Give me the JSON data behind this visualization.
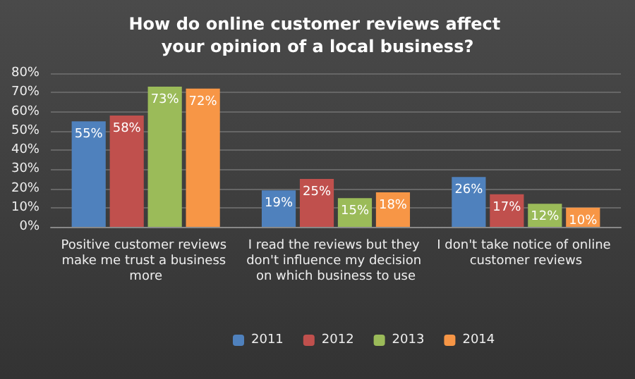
{
  "chart_data": {
    "type": "bar",
    "title": "How do online customer reviews affect your opinion of a local business?",
    "categories": [
      "Positive customer reviews make me trust a business more",
      "I read the reviews but they don't influence my decision on which business to use",
      "I don't take notice of online customer reviews"
    ],
    "series": [
      {
        "name": "2011",
        "color": "#4f81bd",
        "values": [
          55,
          19,
          26
        ],
        "value_labels": [
          "55%",
          "19%",
          "26%"
        ]
      },
      {
        "name": "2012",
        "color": "#c0504d",
        "values": [
          58,
          25,
          17
        ],
        "value_labels": [
          "58%",
          "25%",
          "17%"
        ]
      },
      {
        "name": "2013",
        "color": "#9bbb59",
        "values": [
          73,
          15,
          12
        ],
        "value_labels": [
          "73%",
          "15%",
          "12%"
        ]
      },
      {
        "name": "2014",
        "color": "#f79646",
        "values": [
          72,
          18,
          10
        ],
        "value_labels": [
          "72%",
          "18%",
          "10%"
        ]
      }
    ],
    "ylim": [
      0,
      80
    ],
    "yticks": [
      {
        "value": 0,
        "label": "0%"
      },
      {
        "value": 10,
        "label": "10%"
      },
      {
        "value": 20,
        "label": "20%"
      },
      {
        "value": 30,
        "label": "30%"
      },
      {
        "value": 40,
        "label": "40%"
      },
      {
        "value": 50,
        "label": "50%"
      },
      {
        "value": 60,
        "label": "60%"
      },
      {
        "value": 70,
        "label": "70%"
      },
      {
        "value": 80,
        "label": "80%"
      }
    ],
    "grid": "y",
    "legend": "bottom"
  }
}
